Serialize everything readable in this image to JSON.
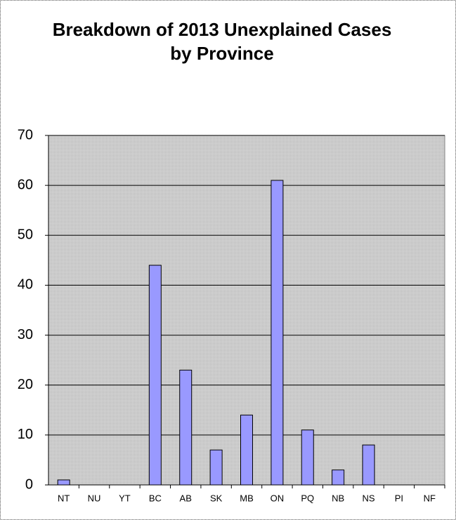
{
  "chart_data": {
    "type": "bar",
    "title": "Breakdown of 2013 Unexplained Cases by Province",
    "categories": [
      "NT",
      "NU",
      "YT",
      "BC",
      "AB",
      "SK",
      "MB",
      "ON",
      "PQ",
      "NB",
      "NS",
      "PI",
      "NF"
    ],
    "values": [
      1,
      0,
      0,
      44,
      23,
      7,
      14,
      61,
      11,
      3,
      8,
      0,
      0
    ],
    "color": "#9999ff",
    "ylim": [
      0,
      70
    ],
    "yticks": [
      0,
      10,
      20,
      30,
      40,
      50,
      60,
      70
    ],
    "grid": true
  }
}
